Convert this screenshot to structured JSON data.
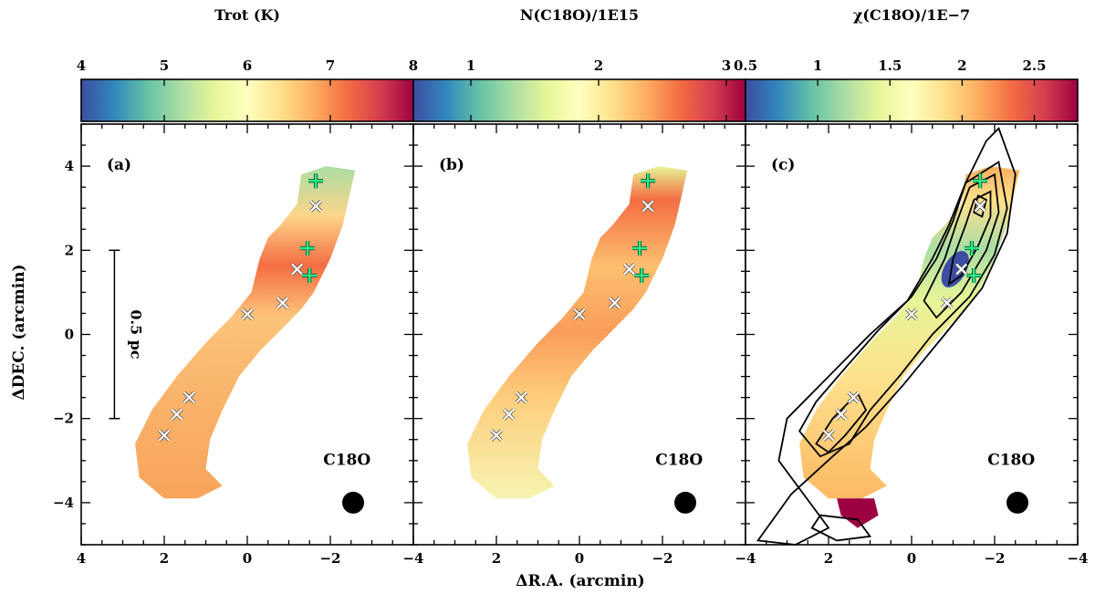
{
  "figure": {
    "x_axis_label": "ΔR.A. (arcmin)",
    "y_axis_label": "ΔDEC. (arcmin)",
    "scale_bar_label": "0.5 pc",
    "scale_bar_length_arcmin": 4.0,
    "beam_label": "C18O",
    "colormap": [
      "#3c4ea2",
      "#3288bd",
      "#66c2a5",
      "#abdda4",
      "#e6f598",
      "#ffffbf",
      "#fee08b",
      "#fdae61",
      "#f46d43",
      "#d53e4f",
      "#9e0142"
    ],
    "marker_colors": {
      "cross": "#ffffff",
      "plus": "#2ee88a"
    }
  },
  "chart_data": [
    {
      "type": "heatmap",
      "panel_label": "(a)",
      "colorbar_title": "Trot (K)",
      "colorbar_ticks": [
        "4",
        "5",
        "6",
        "7",
        "8"
      ],
      "colorbar_range": [
        4,
        8
      ],
      "xlim": [
        4,
        -4
      ],
      "ylim": [
        -5,
        5
      ],
      "x_ticks": [
        "4",
        "2",
        "0",
        "−2",
        "−4"
      ],
      "y_ticks": [
        "4",
        "2",
        "0",
        "−2",
        "−4"
      ],
      "contours": false,
      "cross_markers": [
        {
          "x": -1.65,
          "y": 3.05
        },
        {
          "x": -1.2,
          "y": 1.55
        },
        {
          "x": -0.85,
          "y": 0.75
        },
        {
          "x": 0.0,
          "y": 0.48
        },
        {
          "x": 1.4,
          "y": -1.5
        },
        {
          "x": 1.7,
          "y": -1.9
        },
        {
          "x": 2.0,
          "y": -2.4
        }
      ],
      "plus_markers": [
        {
          "x": -1.65,
          "y": 3.65
        },
        {
          "x": -1.45,
          "y": 2.05
        },
        {
          "x": -1.5,
          "y": 1.4
        }
      ]
    },
    {
      "type": "heatmap",
      "panel_label": "(b)",
      "colorbar_title": "N(C18O)/1E15",
      "colorbar_ticks": [
        "1",
        "2",
        "3"
      ],
      "colorbar_range": [
        0.55,
        3.15
      ],
      "xlim": [
        4,
        -4
      ],
      "ylim": [
        -5,
        5
      ],
      "x_ticks": [
        "2",
        "0",
        "−2",
        "−4"
      ],
      "y_ticks": [],
      "contours": false,
      "cross_markers": [
        {
          "x": -1.65,
          "y": 3.05
        },
        {
          "x": -1.2,
          "y": 1.55
        },
        {
          "x": -0.85,
          "y": 0.75
        },
        {
          "x": 0.0,
          "y": 0.48
        },
        {
          "x": 1.4,
          "y": -1.5
        },
        {
          "x": 1.7,
          "y": -1.9
        },
        {
          "x": 2.0,
          "y": -2.4
        }
      ],
      "plus_markers": [
        {
          "x": -1.65,
          "y": 3.65
        },
        {
          "x": -1.45,
          "y": 2.05
        },
        {
          "x": -1.5,
          "y": 1.4
        }
      ]
    },
    {
      "type": "heatmap",
      "panel_label": "(c)",
      "colorbar_title": "χ(C18O)/1E−7",
      "colorbar_ticks": [
        "0.5",
        "1",
        "1.5",
        "2",
        "2.5"
      ],
      "colorbar_range": [
        0.5,
        2.8
      ],
      "xlim": [
        4,
        -4
      ],
      "ylim": [
        -5,
        5
      ],
      "x_ticks": [
        "2",
        "0",
        "−2",
        "−4"
      ],
      "y_ticks": [],
      "contours": true,
      "cross_markers": [
        {
          "x": -1.65,
          "y": 3.05
        },
        {
          "x": -1.2,
          "y": 1.55
        },
        {
          "x": -0.85,
          "y": 0.75
        },
        {
          "x": 0.0,
          "y": 0.48
        },
        {
          "x": 1.4,
          "y": -1.5
        },
        {
          "x": 1.7,
          "y": -1.9
        },
        {
          "x": 2.0,
          "y": -2.4
        }
      ],
      "plus_markers": [
        {
          "x": -1.65,
          "y": 3.65
        },
        {
          "x": -1.45,
          "y": 2.05
        },
        {
          "x": -1.5,
          "y": 1.4
        }
      ]
    }
  ]
}
